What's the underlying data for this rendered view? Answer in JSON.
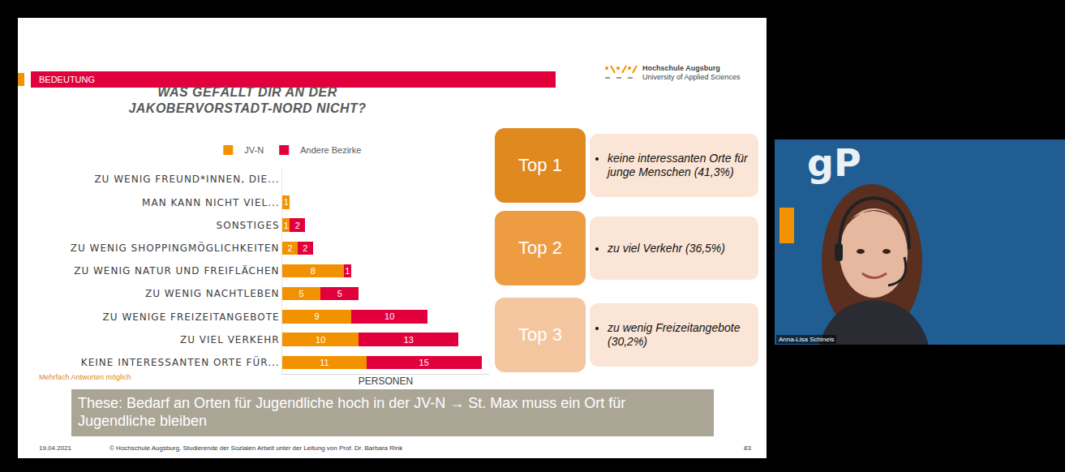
{
  "header": {
    "section": "BEDEUTUNG",
    "logo": [
      "Hochschule Augsburg",
      "University of Applied Sciences"
    ]
  },
  "chart_data": {
    "type": "bar",
    "title": "WAS GEFÄLLT DIR AN DER JAKOBERVORSTADT-NORD NICHT?",
    "orientation": "horizontal",
    "stacked": true,
    "data_labels": true,
    "grid": false,
    "legend": "top",
    "tick_labels": "y",
    "categories": [
      "ZU WENIG FREUND*INNEN, DIE...",
      "MAN KANN NICHT VIEL...",
      "SONSTIGES",
      "ZU WENIG SHOPPINGMÖGLICHKEITEN",
      "ZU WENIG NATUR UND FREIFLÄCHEN",
      "ZU WENIG NACHTLEBEN",
      "ZU WENIGE FREIZEITANGEBOTE",
      "ZU VIEL VERKEHR",
      "KEINE INTERESSANTEN ORTE FÜR..."
    ],
    "series": [
      {
        "name": "JV-N",
        "color": "#f39200",
        "values": [
          null,
          1,
          1,
          2,
          8,
          5,
          9,
          10,
          11
        ]
      },
      {
        "name": "Andere Bezirke",
        "color": "#e2003c",
        "values": [
          null,
          null,
          2,
          2,
          1,
          5,
          10,
          13,
          15
        ]
      }
    ],
    "xlabel": "PERSONEN",
    "xlim": [
      0,
      27
    ],
    "xticks": [],
    "annotation": "Mehrfach Antworten möglich"
  },
  "top_list": [
    {
      "rank": "Top 1",
      "text": "keine interessanten Orte für junge Menschen (41,3%)",
      "color": "#e0891f"
    },
    {
      "rank": "Top 2",
      "text": "zu viel Verkehr (36,5%)",
      "color": "#ee9c42"
    },
    {
      "rank": "Top 3",
      "text": "zu wenig Freizeitangebote (30,2%)",
      "color": "#f4c6a0"
    }
  ],
  "thesis": "These: Bedarf an Orten für Jugendliche hoch in der JV-N → St. Max muss ein Ort für Jugendliche bleiben",
  "footer": {
    "date": "19.04.2021",
    "copyright": "© Hochschule Augsburg, Studierende der Sozialen Arbeit unter der Leitung von Prof. Dr. Barbara Rink",
    "page": "83"
  },
  "webcam": {
    "logo": "gP",
    "name": "Anna-Lisa Schineis"
  }
}
